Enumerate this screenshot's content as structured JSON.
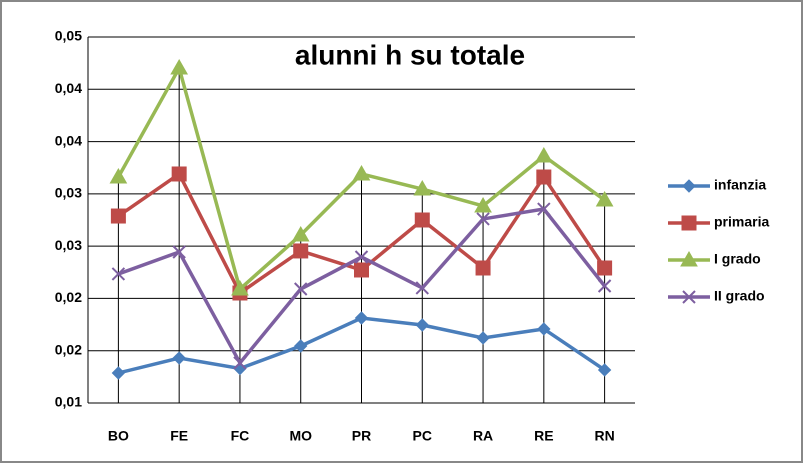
{
  "chart_data": {
    "type": "line",
    "title": "alunni h su totale",
    "categories": [
      "BO",
      "FE",
      "FC",
      "MO",
      "PR",
      "PC",
      "RA",
      "RE",
      "RN"
    ],
    "series": [
      {
        "name": "infanzia",
        "color": "#4a7ebb",
        "marker": "diamond",
        "values": [
          0.01287,
          0.0143,
          0.0133,
          0.01545,
          0.01813,
          0.01746,
          0.01622,
          0.01708,
          0.01316
        ]
      },
      {
        "name": "primaria",
        "color": "#be4b48",
        "marker": "square",
        "values": [
          0.02788,
          0.0319,
          0.02052,
          0.02454,
          0.02272,
          0.0275,
          0.02291,
          0.03161,
          0.02291
        ]
      },
      {
        "name": "I grado",
        "color": "#98b954",
        "marker": "triangle",
        "values": [
          0.03161,
          0.04203,
          0.0209,
          0.02607,
          0.0319,
          0.03046,
          0.02884,
          0.03362,
          0.02941
        ]
      },
      {
        "name": "II grado",
        "color": "#7d5fa0",
        "marker": "x",
        "values": [
          0.02234,
          0.02444,
          0.01383,
          0.0209,
          0.02396,
          0.021,
          0.0276,
          0.02855,
          0.02119
        ]
      }
    ],
    "ylim": [
      0.01,
      0.045
    ],
    "yticks": [
      {
        "value": 0.01,
        "label": "0,01"
      },
      {
        "value": 0.015,
        "label": "0,02"
      },
      {
        "value": 0.02,
        "label": "0,02"
      },
      {
        "value": 0.025,
        "label": "0,03"
      },
      {
        "value": 0.03,
        "label": "0,03"
      },
      {
        "value": 0.035,
        "label": "0,04"
      },
      {
        "value": 0.04,
        "label": "0,04"
      },
      {
        "value": 0.045,
        "label": "0,05"
      }
    ],
    "grid": true,
    "drop_lines": true,
    "legend": "right"
  }
}
